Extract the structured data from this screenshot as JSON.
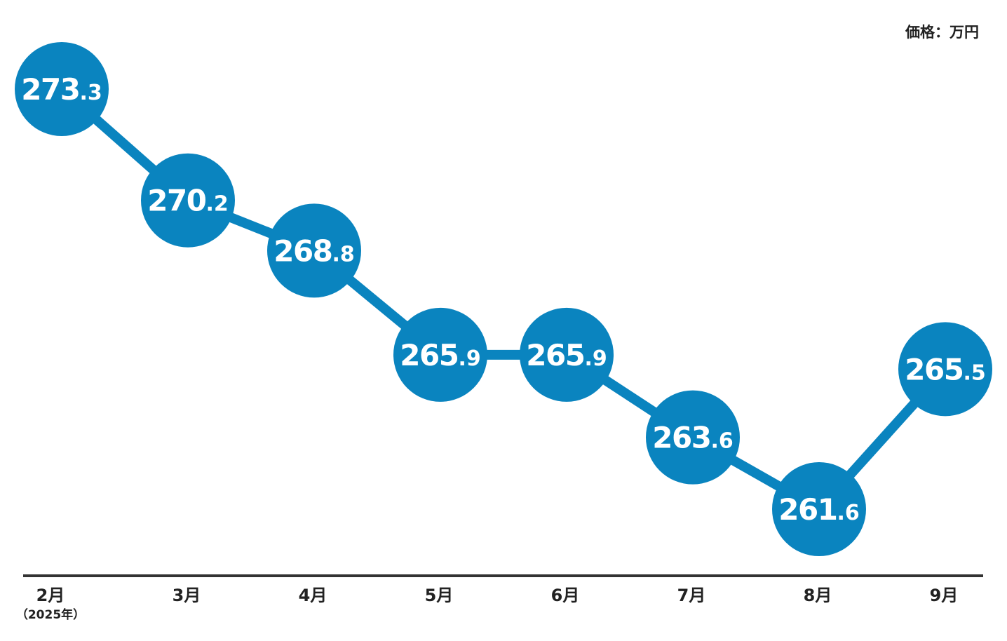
{
  "chart_data": {
    "type": "line",
    "unit_label": "価格：万円",
    "categories": [
      "2月",
      "3月",
      "4月",
      "5月",
      "6月",
      "7月",
      "8月",
      "9月"
    ],
    "first_category_sub": "（2025年）",
    "series": [
      {
        "values": [
          273.3,
          270.2,
          268.8,
          265.9,
          265.9,
          263.6,
          261.6,
          265.5
        ]
      }
    ],
    "data_labels": [
      {
        "int": "273",
        "dec": ".3"
      },
      {
        "int": "270",
        "dec": ".2"
      },
      {
        "int": "268",
        "dec": ".8"
      },
      {
        "int": "265",
        "dec": ".9"
      },
      {
        "int": "265",
        "dec": ".9"
      },
      {
        "int": "263",
        "dec": ".6"
      },
      {
        "int": "261",
        "dec": ".6"
      },
      {
        "int": "265",
        "dec": ".5"
      }
    ],
    "grid": false,
    "legend": "none"
  },
  "colors": {
    "marker": "#0a84bf",
    "line": "#0a84bf",
    "axis": "#333333",
    "text": "#222222",
    "label": "#ffffff"
  }
}
